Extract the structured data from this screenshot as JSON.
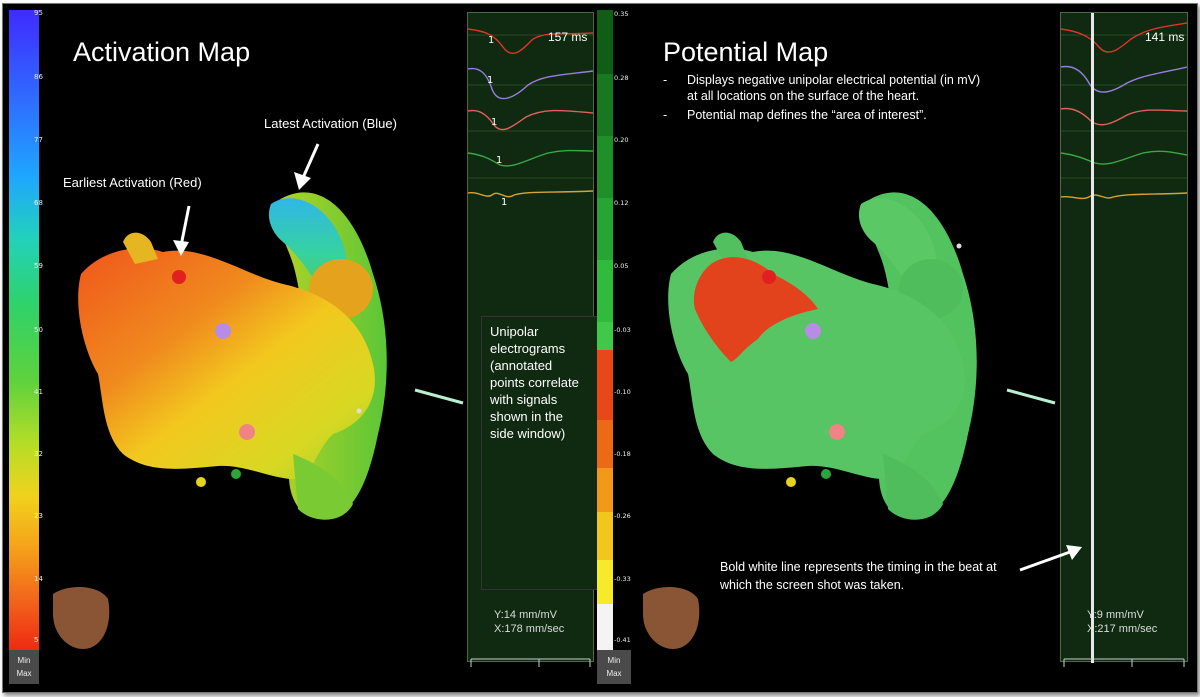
{
  "activation_panel": {
    "title": "Activation Map",
    "scale_ticks": [
      "95",
      "86",
      "77",
      "68",
      "59",
      "50",
      "41",
      "32",
      "23",
      "14",
      "5"
    ],
    "minmax": [
      "Min",
      "Max"
    ],
    "earliest_label": "Earliest Activation (Red)",
    "latest_label": "Latest Activation (Blue)",
    "ecg": {
      "time": "157 ms",
      "y_scale": "Y:14 mm/mV",
      "x_scale": "X:178 mm/sec"
    },
    "callout": "Unipolar electrograms (annotated points correlate with signals shown in the side window)"
  },
  "voltage_scale": {
    "ticks": [
      "0.35",
      "0.28",
      "0.20",
      "0.12",
      "0.05",
      "-0.03",
      "-0.10",
      "-0.18",
      "-0.26",
      "-0.33",
      "-0.41"
    ],
    "minmax": [
      "Min",
      "Max"
    ]
  },
  "potential_panel": {
    "title": "Potential Map",
    "bullets": [
      "Displays negative unipolar electrical potential (in mV) at all locations on the surface of the heart.",
      "Potential map defines the “area of interest”."
    ],
    "ecg": {
      "time": "141 ms",
      "y_scale": "Y:9 mm/mV",
      "x_scale": "X:217 mm/sec"
    },
    "timing_note": "Bold white line represents the timing in the beat at which the screen shot was taken."
  },
  "colors": {
    "ecg_background": "#0f2a10",
    "trace_1": "#e0342a",
    "trace_2": "#9a7be0",
    "trace_3": "#e0605a",
    "trace_4": "#3aa844",
    "trace_5": "#d8a23a"
  }
}
